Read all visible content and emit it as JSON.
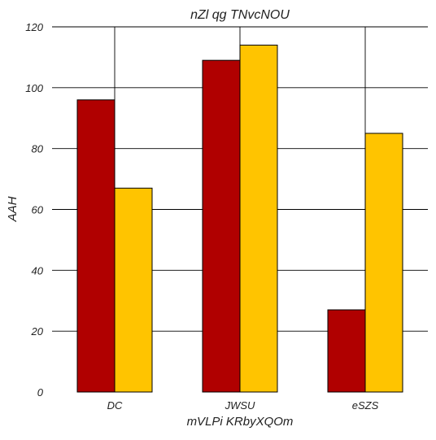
{
  "chart_data": {
    "type": "bar",
    "title": "nZl qg TNvcNOU",
    "xlabel": "mVLPi KRbyXQOm",
    "ylabel": "AAH",
    "categories": [
      "DC",
      "JWSU",
      "eSZS"
    ],
    "series": [
      {
        "values": [
          96,
          109,
          27
        ],
        "color": "#b00000"
      },
      {
        "values": [
          67,
          114,
          85
        ],
        "color": "#ffc400"
      }
    ],
    "ylim": [
      0,
      120
    ],
    "yticks": [
      0,
      20,
      40,
      60,
      80,
      100,
      120
    ],
    "grid": true
  }
}
